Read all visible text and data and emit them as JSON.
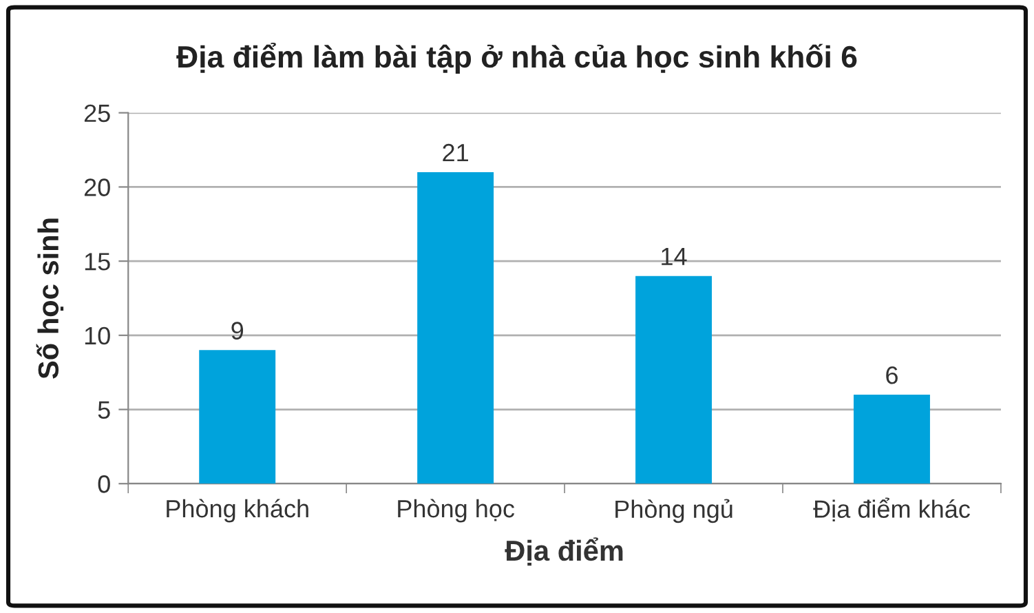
{
  "chart_data": {
    "type": "bar",
    "title": "Địa điểm làm bài tập ở nhà của học sinh khối 6",
    "xlabel": "Địa điểm",
    "ylabel": "Số học sinh",
    "categories": [
      "Phòng khách",
      "Phòng học",
      "Phòng ngủ",
      "Địa điểm khác"
    ],
    "values": [
      9,
      21,
      14,
      6
    ],
    "color": "#00a3dc",
    "ylim": [
      0,
      25
    ],
    "yticks": [
      0,
      5,
      10,
      15,
      20,
      25
    ],
    "grid": "y",
    "data_labels": true
  }
}
